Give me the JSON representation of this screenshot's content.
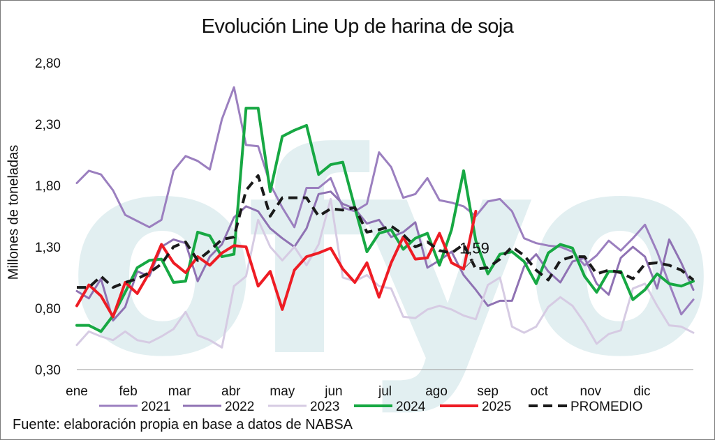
{
  "chart_data": {
    "type": "line",
    "title": "Evolución Line Up de harina de soja",
    "ylabel": "Millones de toneladas",
    "xlabel": "",
    "source": "Fuente: elaboración propia en base a datos de NABSA",
    "ylim": [
      0.3,
      2.8
    ],
    "yticks": [
      "0,30",
      "0,80",
      "1,30",
      "1,80",
      "2,30",
      "2,80"
    ],
    "ytick_values": [
      0.3,
      0.8,
      1.3,
      1.8,
      2.3,
      2.8
    ],
    "months": [
      "ene",
      "feb",
      "mar",
      "abr",
      "may",
      "jun",
      "jul",
      "ago",
      "sep",
      "oct",
      "nov",
      "dic"
    ],
    "x_unit": "week of year (1-52)",
    "grid": false,
    "legend_position": "bottom",
    "annotation": {
      "text": "1,59",
      "series": "2025",
      "week": 33
    },
    "watermark": "ofyo",
    "series": [
      {
        "name": "2021",
        "color": "#9b7fbf",
        "width": 3,
        "dash": false,
        "values": [
          1.82,
          1.92,
          1.89,
          1.76,
          1.56,
          1.51,
          1.46,
          1.52,
          1.92,
          2.04,
          2.0,
          1.93,
          2.34,
          2.6,
          2.13,
          2.12,
          1.81,
          1.62,
          1.46,
          1.78,
          1.78,
          1.86,
          1.62,
          1.59,
          1.65,
          2.07,
          1.95,
          1.7,
          1.73,
          1.86,
          1.68,
          1.66,
          1.63,
          1.55,
          1.67,
          1.69,
          1.59,
          1.37,
          1.33,
          1.31,
          1.3,
          1.26,
          1.15,
          1.23,
          1.35,
          1.27,
          1.37,
          1.48,
          1.26,
          1.0,
          0.75,
          0.87
        ]
      },
      {
        "name": "2022",
        "color": "#8f72b3",
        "width": 3,
        "dash": false,
        "values": [
          0.94,
          0.88,
          1.04,
          0.7,
          0.81,
          1.1,
          1.06,
          1.3,
          1.36,
          1.33,
          1.02,
          1.22,
          1.32,
          1.54,
          1.63,
          1.59,
          1.45,
          1.37,
          1.3,
          1.45,
          1.73,
          1.75,
          1.65,
          1.61,
          1.49,
          1.52,
          1.38,
          1.42,
          1.5,
          1.13,
          1.19,
          1.26,
          1.07,
          0.95,
          0.82,
          0.86,
          0.86,
          1.14,
          1.24,
          1.1,
          1.01,
          1.18,
          1.21,
          1.0,
          0.91,
          1.21,
          1.3,
          1.22,
          0.96,
          1.36,
          1.17,
          0.95
        ]
      },
      {
        "name": "2023",
        "color": "#d6cbe3",
        "width": 3,
        "dash": false,
        "values": [
          0.5,
          0.61,
          0.57,
          0.54,
          0.61,
          0.54,
          0.52,
          0.57,
          0.63,
          0.77,
          0.58,
          0.54,
          0.48,
          0.98,
          1.06,
          1.52,
          1.3,
          1.19,
          1.3,
          1.15,
          1.32,
          1.69,
          1.05,
          1.02,
          1.07,
          0.98,
          0.96,
          0.73,
          0.72,
          0.79,
          0.82,
          0.79,
          0.74,
          0.71,
          0.99,
          1.05,
          0.65,
          0.6,
          0.65,
          0.81,
          0.89,
          0.82,
          0.68,
          0.51,
          0.59,
          0.62,
          0.96,
          1.0,
          0.82,
          0.66,
          0.65,
          0.6
        ]
      },
      {
        "name": "2024",
        "color": "#17a843",
        "width": 4,
        "dash": false,
        "values": [
          0.66,
          0.66,
          0.61,
          0.74,
          0.93,
          1.13,
          1.19,
          1.2,
          1.01,
          1.02,
          1.42,
          1.39,
          1.22,
          1.24,
          2.43,
          2.43,
          1.75,
          2.2,
          2.25,
          2.29,
          1.89,
          1.97,
          1.99,
          1.62,
          1.26,
          1.41,
          1.44,
          1.28,
          1.37,
          1.41,
          1.15,
          1.44,
          1.92,
          1.35,
          1.08,
          1.24,
          1.26,
          1.18,
          1.0,
          1.25,
          1.32,
          1.29,
          1.06,
          0.93,
          1.1,
          1.1,
          0.87,
          0.95,
          1.08,
          1.0,
          0.98,
          1.02
        ]
      },
      {
        "name": "2025",
        "color": "#ee1c24",
        "width": 4,
        "dash": false,
        "values": [
          0.82,
          0.99,
          0.9,
          0.73,
          1.01,
          0.92,
          1.09,
          1.32,
          1.17,
          1.09,
          1.22,
          1.15,
          1.25,
          1.31,
          1.3,
          0.98,
          1.1,
          0.79,
          1.11,
          1.22,
          1.25,
          1.29,
          1.12,
          1.01,
          1.17,
          0.89,
          1.17,
          1.38,
          1.2,
          1.21,
          1.41,
          1.17,
          1.12,
          1.59
        ]
      },
      {
        "name": "PROMEDIO",
        "color": "#1a1a1a",
        "width": 4,
        "dash": true,
        "values": [
          0.97,
          0.97,
          1.06,
          0.97,
          1.01,
          1.04,
          1.09,
          1.16,
          1.3,
          1.34,
          1.19,
          1.27,
          1.36,
          1.38,
          1.76,
          1.88,
          1.55,
          1.7,
          1.7,
          1.7,
          1.55,
          1.61,
          1.6,
          1.62,
          1.42,
          1.44,
          1.47,
          1.4,
          1.3,
          1.34,
          1.27,
          1.25,
          1.32,
          1.12,
          1.13,
          1.2,
          1.3,
          1.23,
          1.11,
          1.03,
          1.19,
          1.22,
          1.22,
          1.08,
          1.11,
          1.09,
          1.04,
          1.16,
          1.17,
          1.15,
          1.11,
          1.03
        ]
      }
    ]
  }
}
